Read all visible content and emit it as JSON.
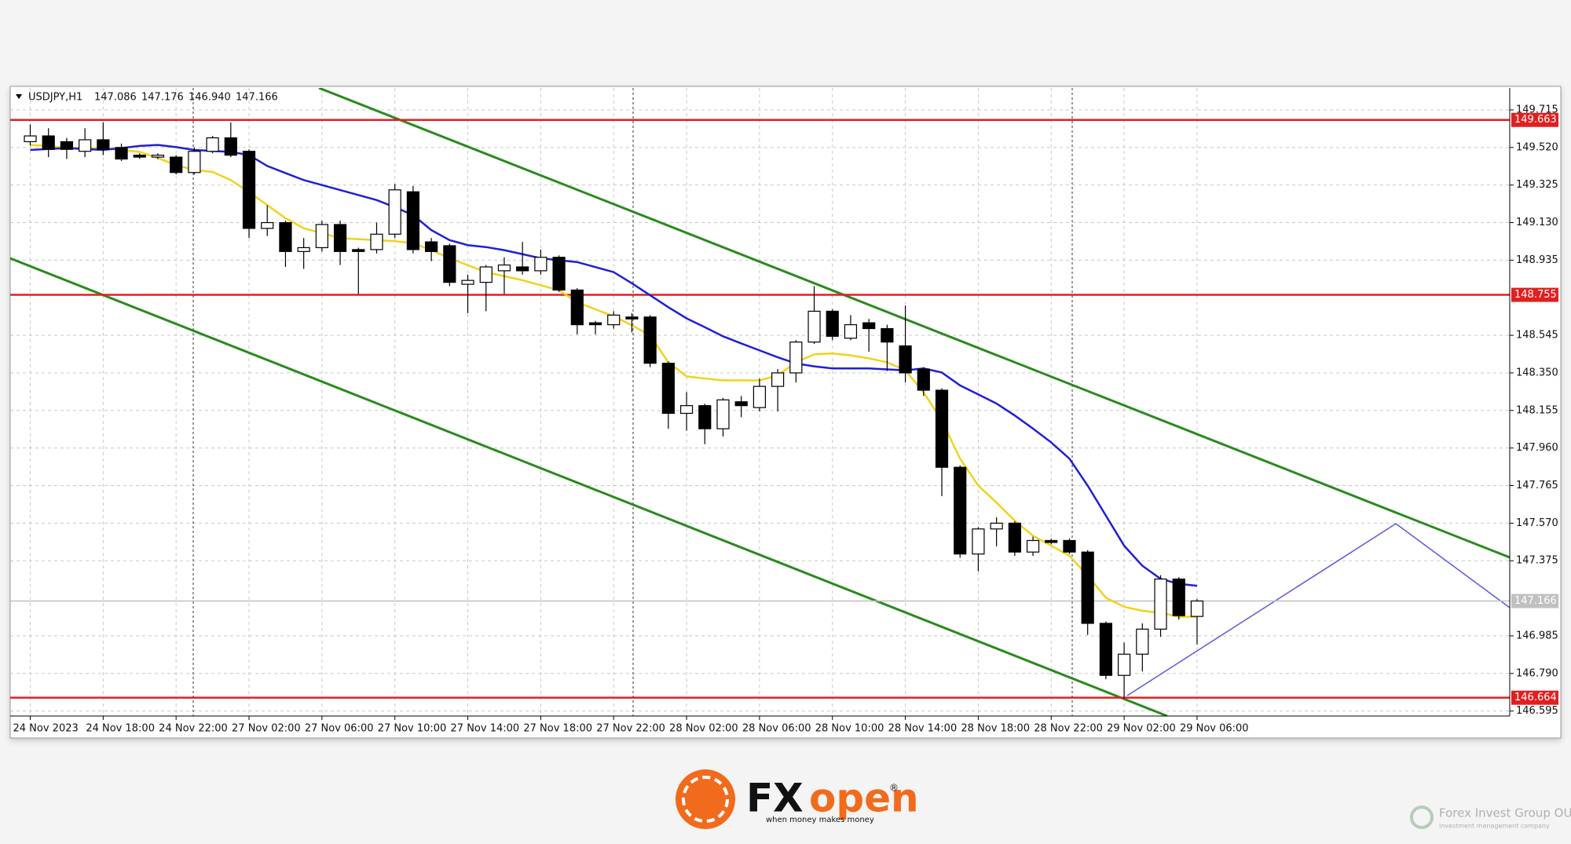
{
  "chart_data": {
    "type": "candlestick",
    "header": {
      "symbol": "USDJPY,H1",
      "values": [
        "147.086",
        "147.176",
        "146.940",
        "147.166"
      ]
    },
    "x": [
      "24 Nov 2023",
      null,
      null,
      null,
      "24 Nov 18:00",
      null,
      null,
      null,
      "24 Nov 22:00",
      null,
      null,
      null,
      "27 Nov 02:00",
      null,
      null,
      null,
      "27 Nov 06:00",
      null,
      null,
      null,
      "27 Nov 10:00",
      null,
      null,
      null,
      "27 Nov 14:00",
      null,
      null,
      null,
      "27 Nov 18:00",
      null,
      null,
      null,
      "27 Nov 22:00",
      null,
      null,
      null,
      "28 Nov 02:00",
      null,
      null,
      null,
      "28 Nov 06:00",
      null,
      null,
      null,
      "28 Nov 10:00",
      null,
      null,
      null,
      "28 Nov 14:00",
      null,
      null,
      null,
      "28 Nov 18:00",
      null,
      null,
      null,
      "28 Nov 22:00",
      null,
      null,
      null,
      "29 Nov 02:00",
      null,
      null,
      null,
      "29 Nov 06:00"
    ],
    "open": [
      149.55,
      149.58,
      149.55,
      149.5,
      149.56,
      149.52,
      149.48,
      149.47,
      149.47,
      149.39,
      149.5,
      149.57,
      149.5,
      149.1,
      149.13,
      148.98,
      149.0,
      149.12,
      148.99,
      148.99,
      149.07,
      149.29,
      149.03,
      149.01,
      148.81,
      148.82,
      148.88,
      148.9,
      148.88,
      148.95,
      148.78,
      148.61,
      148.6,
      148.64,
      148.64,
      148.4,
      148.14,
      148.18,
      148.06,
      148.2,
      148.17,
      148.28,
      148.35,
      148.51,
      148.67,
      148.53,
      148.61,
      148.58,
      148.49,
      148.37,
      148.26,
      147.86,
      147.41,
      147.54,
      147.57,
      147.42,
      147.48,
      147.48,
      147.42,
      147.05,
      146.78,
      146.89,
      147.02,
      147.28,
      147.086
    ],
    "high": [
      149.64,
      149.62,
      149.57,
      149.62,
      149.65,
      149.54,
      149.49,
      149.49,
      149.48,
      149.52,
      149.58,
      149.65,
      149.51,
      149.22,
      149.14,
      149.05,
      149.14,
      149.14,
      149.0,
      149.13,
      149.33,
      149.32,
      149.05,
      149.02,
      148.86,
      148.91,
      148.95,
      149.03,
      148.99,
      148.96,
      148.79,
      148.62,
      148.67,
      148.66,
      148.65,
      148.41,
      148.25,
      148.19,
      148.22,
      148.23,
      148.32,
      148.37,
      148.52,
      148.8,
      148.68,
      148.65,
      148.63,
      148.6,
      148.7,
      148.38,
      148.27,
      147.87,
      147.55,
      147.6,
      147.58,
      147.5,
      147.49,
      147.49,
      147.43,
      147.06,
      146.95,
      147.05,
      147.3,
      147.29,
      147.176
    ],
    "low": [
      149.53,
      149.47,
      149.46,
      149.47,
      149.48,
      149.45,
      149.46,
      149.46,
      149.38,
      149.38,
      149.49,
      149.47,
      149.05,
      149.06,
      148.9,
      148.89,
      148.98,
      148.91,
      148.76,
      148.97,
      149.05,
      148.97,
      148.93,
      148.8,
      148.66,
      148.67,
      148.76,
      148.86,
      148.86,
      148.77,
      148.55,
      148.55,
      148.58,
      148.56,
      148.38,
      148.06,
      148.05,
      147.98,
      148.02,
      148.12,
      148.15,
      148.15,
      148.3,
      148.5,
      148.52,
      148.52,
      148.46,
      148.36,
      148.3,
      148.23,
      147.71,
      147.39,
      147.32,
      147.45,
      147.4,
      147.4,
      147.46,
      147.41,
      146.99,
      146.76,
      146.66,
      146.8,
      146.98,
      147.07,
      146.94
    ],
    "close": [
      149.58,
      149.51,
      149.51,
      149.56,
      149.51,
      149.46,
      149.47,
      149.48,
      149.39,
      149.5,
      149.57,
      149.48,
      149.1,
      149.13,
      148.98,
      149.0,
      149.12,
      148.98,
      148.98,
      149.07,
      149.3,
      148.99,
      148.98,
      148.82,
      148.83,
      148.9,
      148.91,
      148.88,
      148.95,
      148.78,
      148.6,
      148.6,
      148.65,
      148.63,
      148.4,
      148.14,
      148.18,
      148.06,
      148.21,
      148.18,
      148.28,
      148.35,
      148.51,
      148.67,
      148.54,
      148.6,
      148.58,
      148.51,
      148.35,
      148.26,
      147.86,
      147.41,
      147.54,
      147.57,
      147.42,
      147.48,
      147.47,
      147.42,
      147.05,
      146.78,
      146.89,
      147.02,
      147.28,
      147.09,
      147.166
    ],
    "up_color": "#ffffff",
    "down_color": "#000000",
    "lines": [
      {
        "color": "#f2d21c",
        "values": [
          149.533,
          149.528,
          149.517,
          149.517,
          149.517,
          149.507,
          149.497,
          149.465,
          149.429,
          149.403,
          149.393,
          149.351,
          149.289,
          149.221,
          149.153,
          149.101,
          149.075,
          149.049,
          149.044,
          149.039,
          149.034,
          149.023,
          148.987,
          148.945,
          148.909,
          148.873,
          148.852,
          148.831,
          148.805,
          148.779,
          148.717,
          148.68,
          148.644,
          148.597,
          148.545,
          148.405,
          148.332,
          148.321,
          148.311,
          148.311,
          148.311,
          148.337,
          148.405,
          148.446,
          148.451,
          148.441,
          148.425,
          148.405,
          148.363,
          148.249,
          148.103,
          147.905,
          147.765,
          147.677,
          147.583,
          147.505,
          147.453,
          147.401,
          147.297,
          147.183,
          147.136,
          147.115,
          147.105,
          147.084,
          147.084
        ]
      },
      {
        "color": "#1f1fd6",
        "values": [
          149.507,
          149.512,
          149.517,
          149.512,
          149.507,
          149.517,
          149.528,
          149.533,
          149.522,
          149.507,
          149.502,
          149.497,
          149.481,
          149.424,
          149.387,
          149.351,
          149.325,
          149.299,
          149.273,
          149.247,
          149.21,
          149.169,
          149.091,
          149.039,
          149.013,
          149.003,
          148.987,
          148.966,
          148.945,
          148.935,
          148.925,
          148.899,
          148.873,
          148.815,
          148.753,
          148.691,
          148.633,
          148.587,
          148.54,
          148.503,
          148.467,
          148.431,
          148.399,
          148.384,
          148.373,
          148.373,
          148.373,
          148.368,
          148.363,
          148.373,
          148.352,
          148.285,
          148.238,
          148.191,
          148.129,
          148.061,
          147.989,
          147.905,
          147.765,
          147.609,
          147.453,
          147.349,
          147.281,
          147.255,
          147.245
        ]
      }
    ],
    "levels": [
      {
        "value": 149.663,
        "color": "#e02020"
      },
      {
        "value": 148.755,
        "color": "#e02020"
      },
      {
        "value": 146.664,
        "color": "#e02020"
      },
      {
        "value": 147.166,
        "color": "#c0c0c0",
        "label_color": "#000000"
      }
    ],
    "ylim": [
      146.569,
      149.829
    ],
    "yticks": [
      149.715,
      {
        "value": 149.52,
        "label": "149.520"
      },
      149.325,
      {
        "value": 149.13,
        "label": "149.130"
      },
      148.935,
      148.545,
      {
        "value": 148.35,
        "label": "148.350"
      },
      148.155,
      {
        "value": 147.96,
        "label": "147.960"
      },
      147.765,
      {
        "value": 147.57,
        "label": "147.570"
      },
      147.375,
      146.985,
      {
        "value": 146.79,
        "label": "146.790"
      },
      146.595
    ],
    "grid": true
  },
  "branding": {
    "logo_fx": "FX",
    "logo_open": "open",
    "logo_mark": "®",
    "tagline": "when money makes money",
    "partner": "Forex Invest Group OU",
    "partner_sub": "investment management company"
  }
}
